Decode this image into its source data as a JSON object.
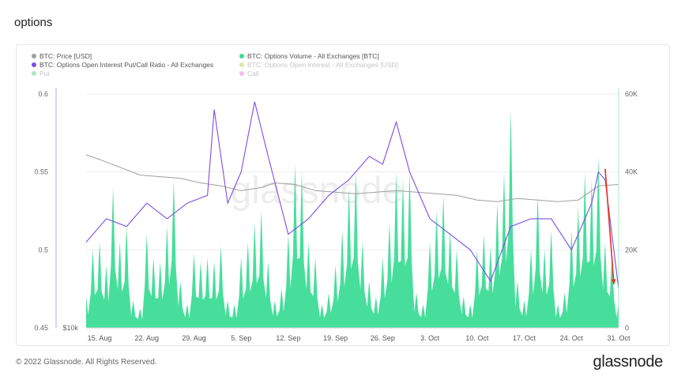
{
  "page": {
    "title": "options",
    "footer": "© 2022 Glassnode. All Rights Reserved.",
    "brand": "glassnode"
  },
  "legend": [
    {
      "label": "BTC: Price [USD]",
      "color": "#9e9e9e",
      "faded": false
    },
    {
      "label": "BTC: Options Volume - All Exchanges [BTC]",
      "color": "#3ddc97",
      "faded": false
    },
    {
      "label": "BTC: Options Open Interest Put/Call Ratio - All Exchanges",
      "color": "#7a4fe6",
      "faded": false
    },
    {
      "label": "BTC: Options Open Interest - All Exchanges [USD]",
      "color": "#a6b81c",
      "faded": true
    },
    {
      "label": "Put",
      "color": "#27ae60",
      "faded": true
    },
    {
      "label": "Call",
      "color": "#e83ec8",
      "faded": true
    }
  ],
  "chart_data": {
    "type": "area",
    "watermark": "glassnode",
    "x_axis": {
      "range": [
        "2022-08-13",
        "2022-10-31"
      ],
      "ticks": [
        "15. Aug",
        "22. Aug",
        "29. Aug",
        "5. Sep",
        "12. Sep",
        "19. Sep",
        "26. Sep",
        "3. Oct",
        "10. Oct",
        "17. Oct",
        "24. Oct",
        "31. Oct"
      ]
    },
    "y_left": {
      "range": [
        0.45,
        0.6
      ],
      "ticks": [
        "0.45",
        "0.5",
        "0.55",
        "0.6"
      ]
    },
    "y_right": {
      "range": [
        0,
        60000
      ],
      "ticks": [
        "0",
        "20K",
        "40K",
        "60K"
      ]
    },
    "price_axis_label": "$10k",
    "grid": true,
    "series": [
      {
        "name": "BTC: Options Volume - All Exchanges [BTC]",
        "type": "area",
        "axis": "right",
        "color": "#3ddc97",
        "x": [
          "2022-08-13",
          "2022-08-14",
          "2022-08-15",
          "2022-08-16",
          "2022-08-17",
          "2022-08-18",
          "2022-08-19",
          "2022-08-20",
          "2022-08-21",
          "2022-08-22",
          "2022-08-23",
          "2022-08-24",
          "2022-08-25",
          "2022-08-26",
          "2022-08-27",
          "2022-08-28",
          "2022-08-29",
          "2022-08-30",
          "2022-08-31",
          "2022-09-01",
          "2022-09-02",
          "2022-09-03",
          "2022-09-04",
          "2022-09-05",
          "2022-09-06",
          "2022-09-07",
          "2022-09-08",
          "2022-09-09",
          "2022-09-10",
          "2022-09-11",
          "2022-09-12",
          "2022-09-13",
          "2022-09-14",
          "2022-09-15",
          "2022-09-16",
          "2022-09-17",
          "2022-09-18",
          "2022-09-19",
          "2022-09-20",
          "2022-09-21",
          "2022-09-22",
          "2022-09-23",
          "2022-09-24",
          "2022-09-25",
          "2022-09-26",
          "2022-09-27",
          "2022-09-28",
          "2022-09-29",
          "2022-09-30",
          "2022-10-01",
          "2022-10-02",
          "2022-10-03",
          "2022-10-04",
          "2022-10-05",
          "2022-10-06",
          "2022-10-07",
          "2022-10-08",
          "2022-10-09",
          "2022-10-10",
          "2022-10-11",
          "2022-10-12",
          "2022-10-13",
          "2022-10-14",
          "2022-10-15",
          "2022-10-16",
          "2022-10-17",
          "2022-10-18",
          "2022-10-19",
          "2022-10-20",
          "2022-10-21",
          "2022-10-22",
          "2022-10-23",
          "2022-10-24",
          "2022-10-25",
          "2022-10-26",
          "2022-10-27",
          "2022-10-28",
          "2022-10-29",
          "2022-10-30",
          "2022-10-31"
        ],
        "values": [
          8000,
          20000,
          22000,
          16000,
          36000,
          22000,
          26000,
          7000,
          5000,
          24000,
          18000,
          17000,
          26000,
          38000,
          12000,
          6000,
          19000,
          17000,
          18000,
          17000,
          21000,
          7000,
          6000,
          18000,
          22000,
          27000,
          30000,
          17000,
          7000,
          10000,
          24000,
          42000,
          40000,
          22000,
          18000,
          6000,
          9000,
          16000,
          25000,
          36000,
          40000,
          22000,
          12000,
          8000,
          18000,
          27000,
          40000,
          38000,
          40000,
          9000,
          6000,
          22000,
          30000,
          34000,
          25000,
          20000,
          8000,
          6000,
          20000,
          24000,
          21000,
          32000,
          40000,
          56000,
          12000,
          7000,
          20000,
          34000,
          20000,
          25000,
          6000,
          9000,
          25000,
          31000,
          40000,
          38000,
          44000,
          22000,
          18000,
          6000
        ]
      },
      {
        "name": "BTC: Options Open Interest Put/Call Ratio - All Exchanges",
        "type": "line",
        "axis": "left",
        "color": "#7a4fe6",
        "x": [
          "2022-08-13",
          "2022-08-16",
          "2022-08-19",
          "2022-08-22",
          "2022-08-25",
          "2022-08-28",
          "2022-08-31",
          "2022-09-01",
          "2022-09-03",
          "2022-09-05",
          "2022-09-07",
          "2022-09-09",
          "2022-09-12",
          "2022-09-15",
          "2022-09-18",
          "2022-09-21",
          "2022-09-24",
          "2022-09-26",
          "2022-09-28",
          "2022-09-30",
          "2022-10-03",
          "2022-10-06",
          "2022-10-09",
          "2022-10-12",
          "2022-10-15",
          "2022-10-18",
          "2022-10-21",
          "2022-10-24",
          "2022-10-27",
          "2022-10-28",
          "2022-10-29",
          "2022-10-31"
        ],
        "values": [
          0.505,
          0.52,
          0.515,
          0.53,
          0.52,
          0.53,
          0.535,
          0.59,
          0.53,
          0.55,
          0.595,
          0.56,
          0.51,
          0.52,
          0.535,
          0.545,
          0.56,
          0.555,
          0.582,
          0.55,
          0.52,
          0.51,
          0.5,
          0.48,
          0.515,
          0.52,
          0.52,
          0.5,
          0.53,
          0.55,
          0.545,
          0.475
        ]
      },
      {
        "name": "BTC: Price [USD]",
        "type": "line",
        "axis": "left",
        "color": "#9e9e9e",
        "x": [
          "2022-08-13",
          "2022-08-15",
          "2022-08-18",
          "2022-08-21",
          "2022-08-24",
          "2022-08-27",
          "2022-08-30",
          "2022-09-02",
          "2022-09-05",
          "2022-09-08",
          "2022-09-10",
          "2022-09-13",
          "2022-09-16",
          "2022-09-19",
          "2022-09-22",
          "2022-09-25",
          "2022-09-28",
          "2022-10-01",
          "2022-10-04",
          "2022-10-07",
          "2022-10-10",
          "2022-10-13",
          "2022-10-16",
          "2022-10-19",
          "2022-10-22",
          "2022-10-25",
          "2022-10-28",
          "2022-10-31"
        ],
        "values": [
          0.561,
          0.558,
          0.553,
          0.548,
          0.547,
          0.546,
          0.543,
          0.541,
          0.538,
          0.54,
          0.543,
          0.542,
          0.538,
          0.537,
          0.536,
          0.537,
          0.538,
          0.537,
          0.536,
          0.535,
          0.532,
          0.531,
          0.533,
          0.532,
          0.531,
          0.532,
          0.541,
          0.542
        ]
      }
    ],
    "annotations": [
      {
        "type": "arrow",
        "color": "#e8321e",
        "from": [
          "2022-10-29",
          0.552
        ],
        "to": [
          "2022-10-31",
          0.478
        ]
      }
    ]
  }
}
